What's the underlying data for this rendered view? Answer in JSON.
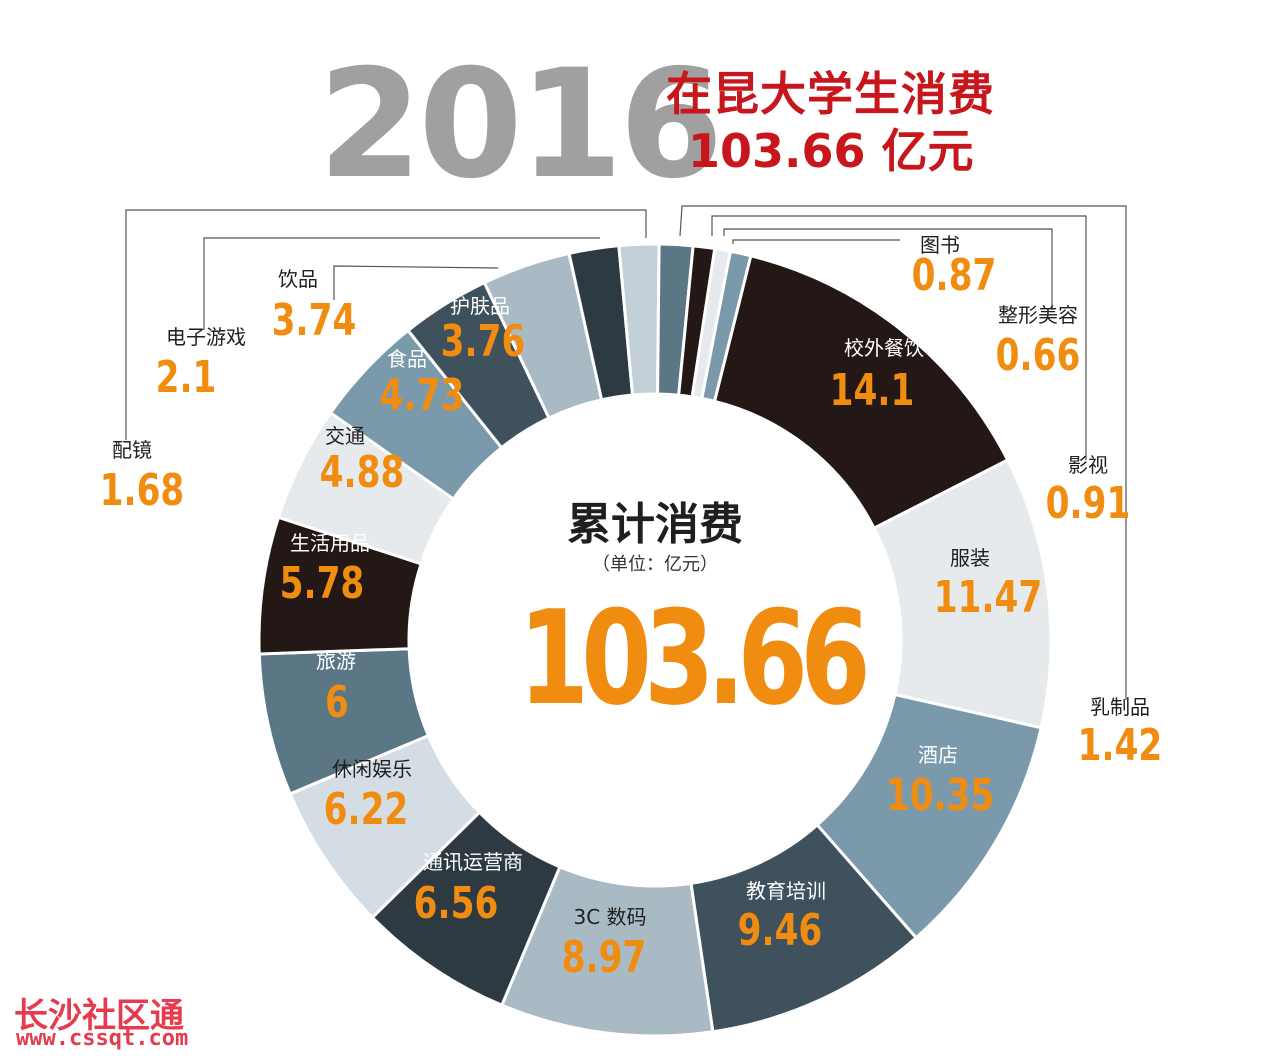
{
  "header": {
    "year": "2016",
    "title": "在昆大学生消费",
    "total_text": "103.66 亿元"
  },
  "center": {
    "title": "累计消费",
    "unit": "（单位：亿元）",
    "value": "103.66"
  },
  "watermark": {
    "name": "长沙社区通",
    "url": "www.cssqt.com"
  },
  "colors": {
    "value_orange": "#f08c10",
    "title_red": "#c8161d",
    "black": "#231815",
    "light_gray": "#e6eaed",
    "steel_blue": "#7a9aab",
    "dark_slate": "#3e515c",
    "pale_blue": "#a9bac5",
    "slate": "#5b7685"
  },
  "chart_data": {
    "type": "pie",
    "title": "累计消费",
    "unit": "亿元",
    "total": 103.66,
    "slices": [
      {
        "label": "校外餐饮",
        "value": 14.1,
        "value_text": "14.1",
        "color": "#231815"
      },
      {
        "label": "服装",
        "value": 11.47,
        "value_text": "11.47",
        "color": "#e6eaed"
      },
      {
        "label": "酒店",
        "value": 10.35,
        "value_text": "10.35",
        "color": "#7a9aab"
      },
      {
        "label": "教育培训",
        "value": 9.46,
        "value_text": "9.46",
        "color": "#3e515c"
      },
      {
        "label": "3C 数码",
        "value": 8.97,
        "value_text": "8.97",
        "color": "#a9bac5"
      },
      {
        "label": "通讯运营商",
        "value": 6.56,
        "value_text": "6.56",
        "color": "#2e3a42"
      },
      {
        "label": "休闲娱乐",
        "value": 6.22,
        "value_text": "6.22",
        "color": "#d4dde3"
      },
      {
        "label": "旅游",
        "value": 6,
        "value_text": "6",
        "color": "#5b7685"
      },
      {
        "label": "生活用品",
        "value": 5.78,
        "value_text": "5.78",
        "color": "#231815"
      },
      {
        "label": "交通",
        "value": 4.88,
        "value_text": "4.88",
        "color": "#e6eaed"
      },
      {
        "label": "食品",
        "value": 4.73,
        "value_text": "4.73",
        "color": "#7a9aab"
      },
      {
        "label": "护肤品",
        "value": 3.76,
        "value_text": "3.76",
        "color": "#3e515c"
      },
      {
        "label": "饮品",
        "value": 3.74,
        "value_text": "3.74",
        "color": "#a9bac5"
      },
      {
        "label": "电子游戏",
        "value": 2.1,
        "value_text": "2.1",
        "color": "#2e3a42"
      },
      {
        "label": "配镜",
        "value": 1.68,
        "value_text": "1.68",
        "color": "#c3d0d8"
      },
      {
        "label": "乳制品",
        "value": 1.42,
        "value_text": "1.42",
        "color": "#5b7685"
      },
      {
        "label": "影视",
        "value": 0.91,
        "value_text": "0.91",
        "color": "#231815"
      },
      {
        "label": "整形美容",
        "value": 0.66,
        "value_text": "0.66",
        "color": "#e6eaed"
      },
      {
        "label": "图书",
        "value": 0.87,
        "value_text": "0.87",
        "color": "#7a9aab"
      }
    ]
  }
}
